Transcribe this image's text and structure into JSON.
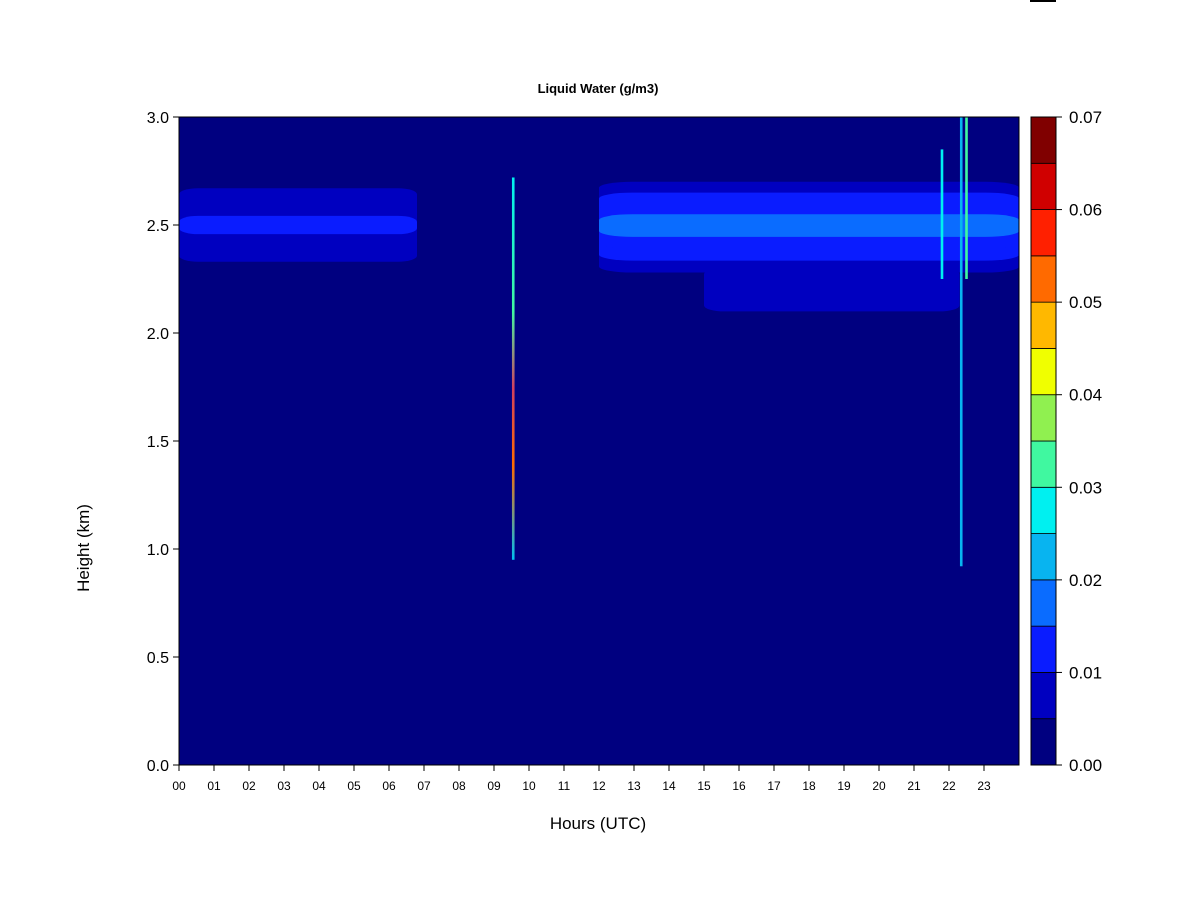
{
  "chart_data": {
    "type": "heatmap",
    "title": "Liquid Water (g/m3)",
    "xlabel": "Hours (UTC)",
    "ylabel": "Height (km)",
    "xlim": [
      0,
      24
    ],
    "ylim": [
      0.0,
      3.0
    ],
    "x_ticks": [
      "00",
      "01",
      "02",
      "03",
      "04",
      "05",
      "06",
      "07",
      "08",
      "09",
      "10",
      "11",
      "12",
      "13",
      "14",
      "15",
      "16",
      "17",
      "18",
      "19",
      "20",
      "21",
      "22",
      "23"
    ],
    "y_ticks": [
      "0.0",
      "0.5",
      "1.0",
      "1.5",
      "2.0",
      "2.5",
      "3.0"
    ],
    "colorbar": {
      "vmin": 0.0,
      "vmax": 0.07,
      "tick_labels": [
        "0.00",
        "0.01",
        "0.02",
        "0.03",
        "0.04",
        "0.05",
        "0.06",
        "0.07"
      ],
      "levels": [
        0.0,
        0.005,
        0.01,
        0.015,
        0.02,
        0.025,
        0.03,
        0.035,
        0.04,
        0.045,
        0.05,
        0.055,
        0.06,
        0.065,
        0.07
      ],
      "colors": [
        "#000080",
        "#0000c0",
        "#0a1cff",
        "#0a6cff",
        "#08b4f0",
        "#00f0f0",
        "#40f8a0",
        "#90f050",
        "#f0ff00",
        "#ffb800",
        "#ff6a00",
        "#ff2000",
        "#d00000",
        "#800000"
      ]
    },
    "background_value": 0.0,
    "features": [
      {
        "kind": "layer",
        "x_start": 0.0,
        "x_end": 6.8,
        "base_km": 2.33,
        "top_km": 2.67,
        "core_km": 2.5,
        "peak_value": 0.012
      },
      {
        "kind": "layer",
        "x_start": 12.0,
        "x_end": 24.0,
        "base_km": 2.28,
        "top_km": 2.7,
        "core_km": 2.5,
        "peak_value": 0.02
      },
      {
        "kind": "layer",
        "x_start": 15.0,
        "x_end": 22.3,
        "base_km": 2.1,
        "top_km": 2.3,
        "core_km": 2.2,
        "peak_value": 0.009
      },
      {
        "kind": "column",
        "x": 9.55,
        "base_km": 0.95,
        "top_km": 2.72,
        "peak_value": 0.05
      },
      {
        "kind": "column",
        "x": 22.35,
        "base_km": 0.92,
        "top_km": 3.0,
        "peak_value": 0.022
      },
      {
        "kind": "column",
        "x": 22.5,
        "base_km": 2.25,
        "top_km": 3.0,
        "peak_value": 0.03
      },
      {
        "kind": "column",
        "x": 21.8,
        "base_km": 2.25,
        "top_km": 2.85,
        "peak_value": 0.025
      }
    ]
  }
}
